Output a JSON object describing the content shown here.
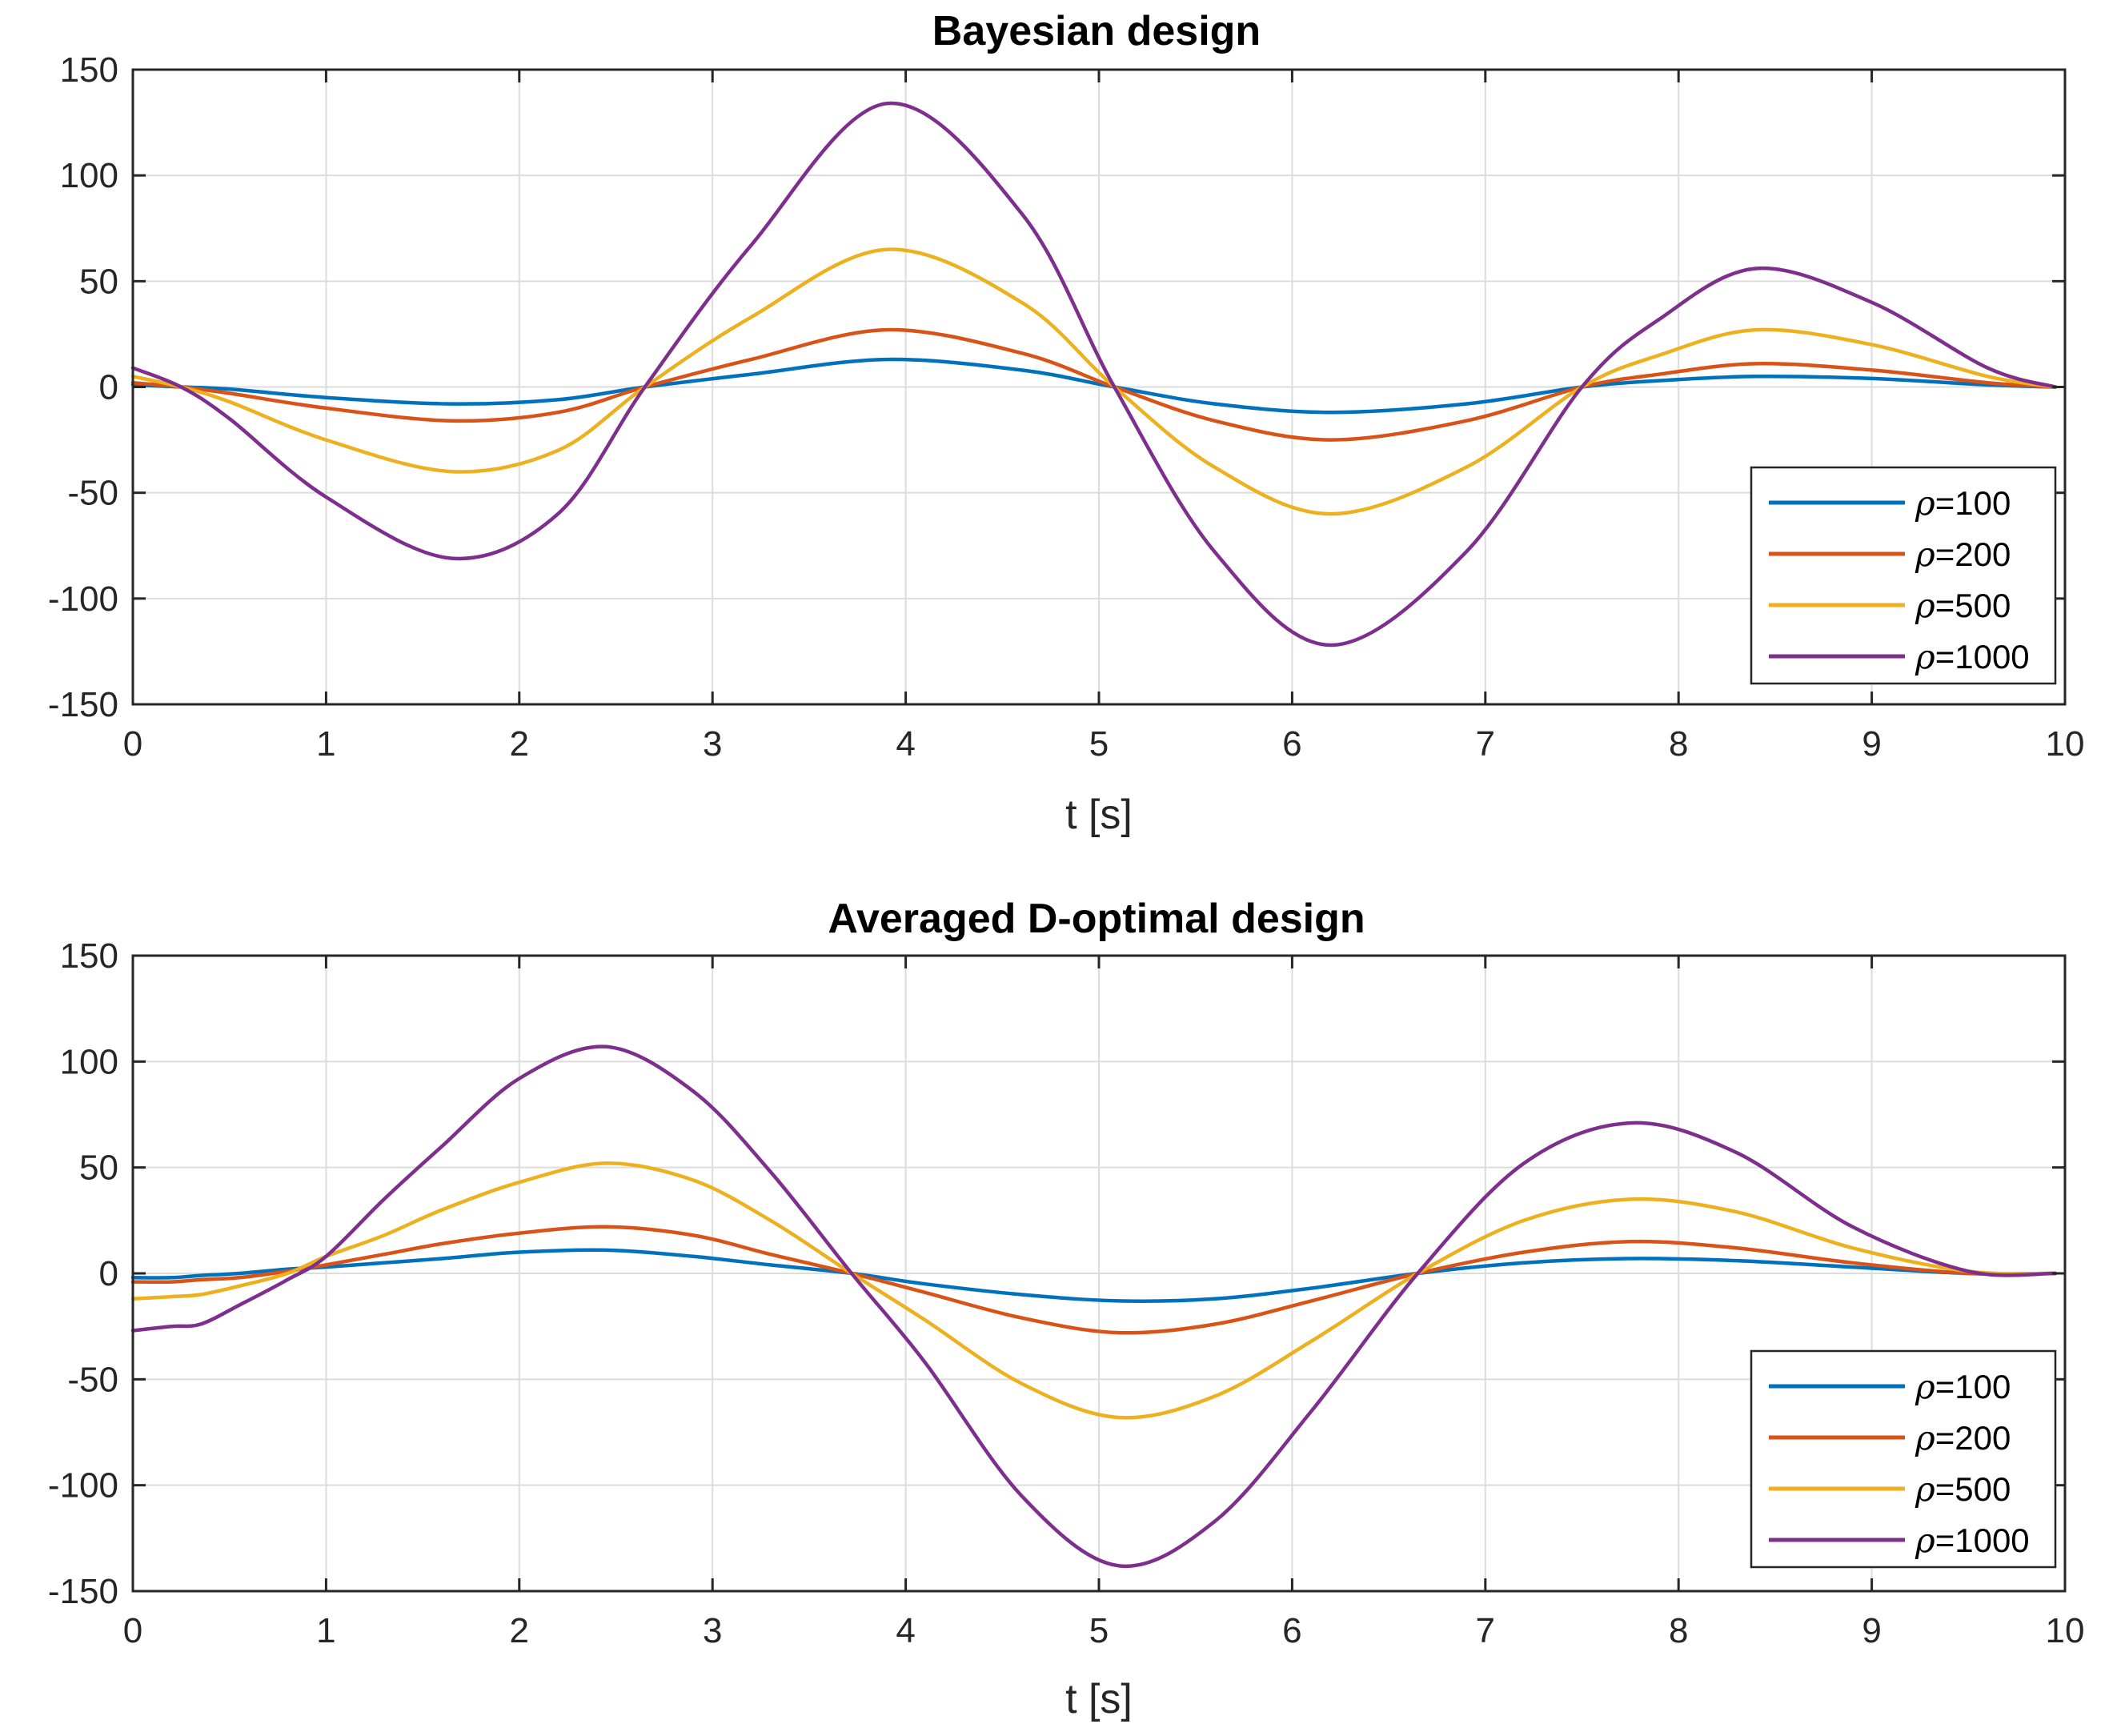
{
  "chart_data": [
    {
      "type": "line",
      "title": "Bayesian design",
      "xlabel": "t [s]",
      "ylabel": "",
      "xlim": [
        0,
        10
      ],
      "ylim": [
        -150,
        150
      ],
      "xticks": [
        "0",
        "1",
        "2",
        "3",
        "4",
        "5",
        "6",
        "7",
        "8",
        "9",
        "10"
      ],
      "yticks": [
        "150",
        "100",
        "50",
        "0",
        "-50",
        "-100",
        "-150"
      ],
      "grid": true,
      "legend_location": "bottom-right",
      "x": [
        0,
        0.25,
        0.5,
        1.0,
        1.65,
        2.2,
        2.65,
        3.2,
        3.9,
        4.6,
        5.08,
        5.6,
        6.2,
        6.9,
        7.5,
        7.9,
        8.4,
        9.0,
        9.6,
        9.95
      ],
      "series": [
        {
          "name": "ρ=100",
          "color": "#0072BD",
          "values": [
            1,
            0,
            -1,
            -5,
            -8,
            -6,
            0,
            6,
            13,
            8,
            0,
            -8,
            -12,
            -8,
            0,
            3,
            5,
            4,
            1,
            0
          ]
        },
        {
          "name": "ρ=200",
          "color": "#D95319",
          "values": [
            2,
            0,
            -3,
            -10,
            -16,
            -12,
            0,
            13,
            27,
            16,
            0,
            -16,
            -25,
            -16,
            0,
            6,
            11,
            8,
            2,
            0
          ]
        },
        {
          "name": "ρ=500",
          "color": "#EDB120",
          "values": [
            5,
            0,
            -7,
            -25,
            -40,
            -30,
            0,
            33,
            65,
            40,
            0,
            -38,
            -60,
            -38,
            0,
            15,
            27,
            20,
            5,
            0
          ]
        },
        {
          "name": "ρ=1000",
          "color": "#7E2F8E",
          "values": [
            9,
            0,
            -15,
            -52,
            -81,
            -60,
            0,
            67,
            134,
            82,
            0,
            -78,
            -122,
            -78,
            0,
            32,
            56,
            40,
            9,
            0
          ]
        }
      ]
    },
    {
      "type": "line",
      "title": "Averaged D-optimal design",
      "xlabel": "t [s]",
      "ylabel": "",
      "xlim": [
        0,
        10
      ],
      "ylim": [
        -150,
        150
      ],
      "xticks": [
        "0",
        "1",
        "2",
        "3",
        "4",
        "5",
        "6",
        "7",
        "8",
        "9",
        "10"
      ],
      "yticks": [
        "150",
        "100",
        "50",
        "0",
        "-50",
        "-100",
        "-150"
      ],
      "grid": true,
      "legend_location": "bottom-right",
      "x": [
        0,
        0.2,
        0.35,
        0.55,
        0.8,
        1.0,
        1.3,
        1.6,
        2.0,
        2.45,
        2.9,
        3.3,
        3.72,
        4.1,
        4.6,
        5.1,
        5.6,
        6.1,
        6.65,
        7.2,
        7.75,
        8.3,
        8.9,
        9.5,
        9.95
      ],
      "series": [
        {
          "name": "ρ=100",
          "color": "#0072BD",
          "values": [
            -2,
            -2,
            -1,
            0,
            2,
            3,
            5,
            7,
            10,
            11,
            8,
            4,
            0,
            -5,
            -10,
            -13,
            -12,
            -7,
            0,
            5,
            7,
            6,
            3,
            0,
            0
          ]
        },
        {
          "name": "ρ=200",
          "color": "#D95319",
          "values": [
            -4,
            -4,
            -3,
            -2,
            1,
            4,
            9,
            14,
            19,
            22,
            18,
            9,
            0,
            -9,
            -21,
            -28,
            -24,
            -13,
            0,
            10,
            15,
            12,
            5,
            0,
            0
          ]
        },
        {
          "name": "ρ=500",
          "color": "#EDB120",
          "values": [
            -12,
            -11,
            -10,
            -6,
            0,
            8,
            18,
            30,
            43,
            52,
            44,
            25,
            0,
            -22,
            -52,
            -68,
            -58,
            -32,
            0,
            25,
            35,
            29,
            12,
            1,
            0
          ]
        },
        {
          "name": "ρ=1000",
          "color": "#7E2F8E",
          "values": [
            -27,
            -25,
            -24,
            -15,
            -3,
            8,
            35,
            60,
            92,
            107,
            86,
            48,
            0,
            -42,
            -105,
            -138,
            -117,
            -65,
            0,
            52,
            71,
            57,
            22,
            1,
            0
          ]
        }
      ]
    }
  ]
}
